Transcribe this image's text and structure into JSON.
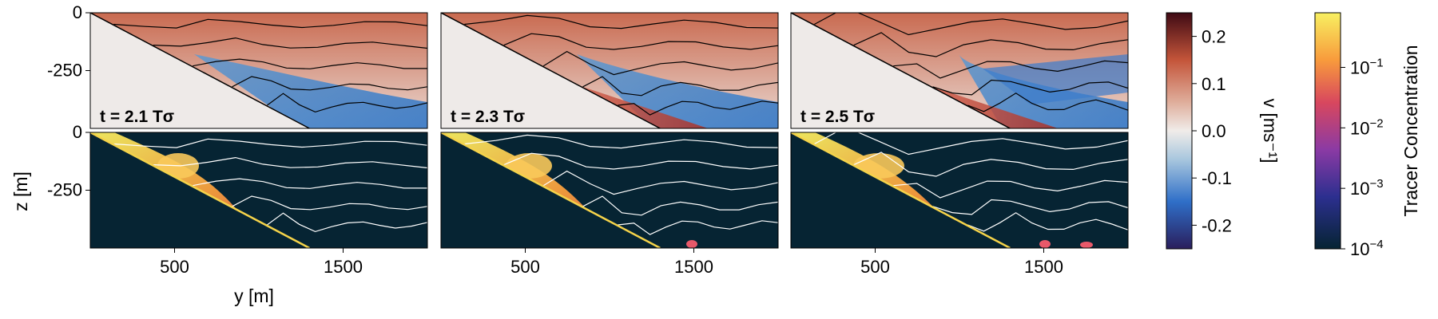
{
  "chart_data": {
    "type": "heatmap",
    "panel_rows": [
      {
        "name": "velocity",
        "field": "v [ms⁻¹]"
      },
      {
        "name": "tracer",
        "field": "Tracer Concentration"
      }
    ],
    "panel_labels": [
      "t = 2.1 Tσ",
      "t = 2.3 Tσ",
      "t = 2.5 Tσ"
    ],
    "times": [
      2.1,
      2.3,
      2.5
    ],
    "xlabel": "y [m]",
    "ylabel": "z [m]",
    "xlim": [
      0,
      2000
    ],
    "ylim": [
      -500,
      0
    ],
    "x_ticks": [
      {
        "value": 500,
        "label": "500"
      },
      {
        "value": 1500,
        "label": "1500"
      }
    ],
    "y_ticks": [
      {
        "value": 0,
        "label": "0"
      },
      {
        "value": -250,
        "label": "-250"
      }
    ],
    "slope_line": {
      "from": [
        0,
        0
      ],
      "to": [
        1300,
        -500
      ]
    },
    "isopycnal_depths": [
      -50,
      -140,
      -230,
      -320,
      -400
    ],
    "velocity_colorbar": {
      "label": "v [ms⁻¹]",
      "range": [
        -0.25,
        0.25
      ],
      "ticks": [
        0.2,
        0.1,
        0.0,
        -0.1,
        -0.2
      ],
      "tick_labels": [
        "0.2",
        "0.1",
        "0.0",
        "-0.1",
        "-0.2"
      ],
      "colormap": "balance",
      "colors": [
        "#2a1e5c",
        "#2f6fc8",
        "#f0ece9",
        "#c4553a",
        "#3f0a14"
      ]
    },
    "tracer_colorbar": {
      "label": "Tracer Concentration",
      "scale": "log",
      "range": [
        0.0001,
        0.8
      ],
      "ticks": [
        0.1,
        0.01,
        0.001,
        0.0001
      ],
      "tick_bases": [
        "10",
        "10",
        "10",
        "10"
      ],
      "tick_exponents": [
        "−1",
        "−2",
        "−3",
        "−4"
      ],
      "colormap": "thermal",
      "colors": [
        "#062433",
        "#2c2f8f",
        "#8b3aa4",
        "#d8475e",
        "#f89b3c",
        "#f8f061"
      ]
    }
  }
}
